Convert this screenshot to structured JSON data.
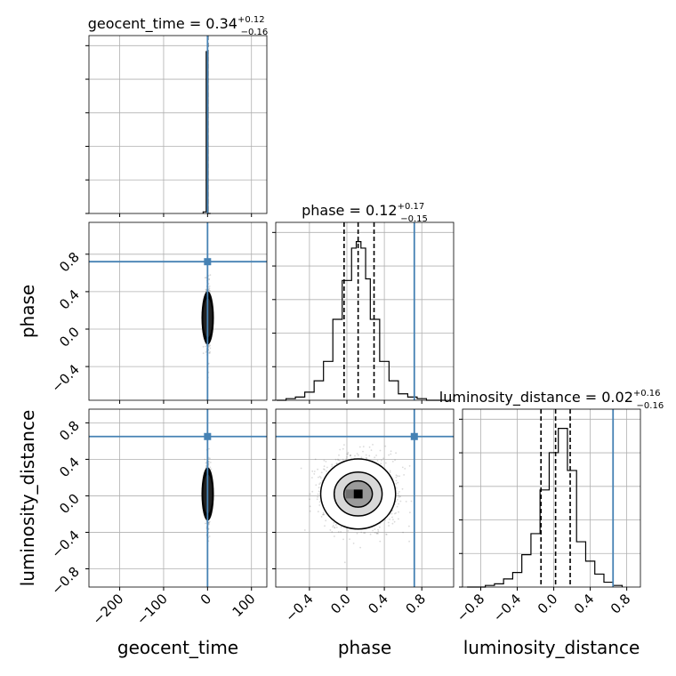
{
  "chart_data": {
    "type": "corner",
    "parameters": [
      "geocent_time",
      "phase",
      "luminosity_distance"
    ],
    "titles": [
      {
        "label": "geocent_time = 0.34",
        "sup": "+0.12",
        "sub": "−0.16"
      },
      {
        "label": "phase = 0.12",
        "sup": "+0.17",
        "sub": "−0.15"
      },
      {
        "label": "luminosity_distance = 0.02",
        "sup": "+0.16",
        "sub": "−0.16"
      }
    ],
    "xlabels": [
      "geocent_time",
      "phase",
      "luminosity_distance"
    ],
    "ylabels": [
      "phase",
      "luminosity_distance"
    ],
    "axis_ranges": {
      "geocent_time": [
        -270,
        135
      ],
      "phase": [
        -0.76,
        1.14
      ],
      "luminosity_distance": [
        -1.0,
        0.95
      ]
    },
    "ticks": {
      "geocent_time": {
        "values": [
          -200,
          -100,
          0,
          100
        ],
        "labels": [
          "−200",
          "−100",
          "0",
          "100"
        ]
      },
      "phase": {
        "values": [
          -0.4,
          0.0,
          0.4,
          0.8
        ],
        "labels": [
          "−0.4",
          "0.0",
          "0.4",
          "0.8"
        ]
      },
      "luminosity_distance": {
        "values": [
          -0.8,
          -0.4,
          0.0,
          0.4,
          0.8
        ],
        "labels": [
          "−0.8",
          "−0.4",
          "0.0",
          "0.4",
          "0.8"
        ]
      }
    },
    "injection": {
      "geocent_time": 0.0,
      "phase": 0.72,
      "luminosity_distance": 0.65
    },
    "quantiles": {
      "geocent_time": [
        0.18,
        0.34,
        0.46
      ],
      "phase": [
        -0.03,
        0.12,
        0.29
      ],
      "luminosity_distance": [
        -0.14,
        0.02,
        0.18
      ]
    },
    "histograms": {
      "geocent_time": {
        "edges": [
          -10,
          -3,
          1,
          7
        ],
        "counts": [
          0.01,
          1.0,
          0.0
        ]
      },
      "phase": {
        "edges": [
          -0.75,
          -0.65,
          -0.55,
          -0.45,
          -0.35,
          -0.25,
          -0.15,
          -0.05,
          0.05,
          0.1,
          0.15,
          0.2,
          0.25,
          0.35,
          0.45,
          0.55,
          0.65,
          0.75,
          0.85,
          1.05
        ],
        "counts": [
          0.0,
          0.01,
          0.02,
          0.05,
          0.12,
          0.24,
          0.5,
          0.74,
          0.94,
          0.98,
          0.94,
          0.75,
          0.5,
          0.24,
          0.12,
          0.04,
          0.02,
          0.01,
          0.0
        ]
      },
      "luminosity_distance": {
        "edges": [
          -0.95,
          -0.75,
          -0.65,
          -0.55,
          -0.45,
          -0.35,
          -0.25,
          -0.15,
          -0.05,
          0.05,
          0.15,
          0.25,
          0.35,
          0.45,
          0.55,
          0.65,
          0.75
        ],
        "counts": [
          0.0,
          0.01,
          0.02,
          0.05,
          0.09,
          0.2,
          0.33,
          0.6,
          0.83,
          0.98,
          0.72,
          0.28,
          0.16,
          0.08,
          0.03,
          0.01
        ]
      }
    },
    "colors": {
      "injection": "#4682b4",
      "hist": "#000000",
      "grid": "#b0b0b0",
      "scatter": "#555555"
    },
    "grid": true
  }
}
